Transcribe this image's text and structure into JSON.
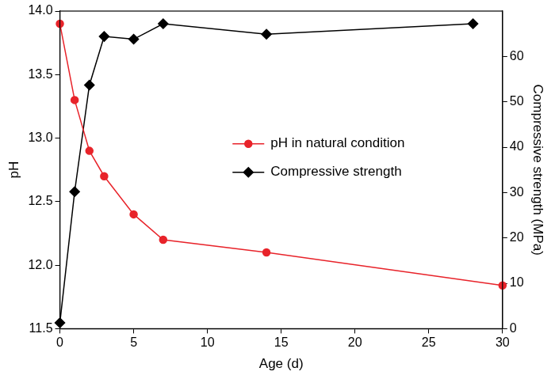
{
  "chart_data": {
    "type": "line",
    "x_label": "Age (d)",
    "y_label": "pH",
    "y2_label": "Compressive strength (MPa)",
    "xlim": [
      0,
      30
    ],
    "xticks": [
      0,
      5,
      10,
      15,
      20,
      25,
      30
    ],
    "ylim": [
      11.5,
      14
    ],
    "yticks": [
      11.5,
      {
        "value": 12,
        "label": "12.0"
      },
      12.5,
      {
        "value": 13,
        "label": "13.0"
      },
      13.5,
      {
        "value": 14,
        "label": "14.0"
      }
    ],
    "y2lim": [
      0,
      70
    ],
    "y2ticks": [
      0,
      10,
      20,
      30,
      40,
      50,
      60
    ],
    "grid": false,
    "legend": "center",
    "series": [
      {
        "name": "pH in natural condition",
        "color": "#e8232a",
        "marker": "circle",
        "line_style": "solid",
        "x": [
          0,
          1,
          2,
          3,
          5,
          7,
          14,
          30
        ],
        "values": [
          13.9,
          13.3,
          12.9,
          12.7,
          12.4,
          12.2,
          12.1,
          11.84
        ]
      },
      {
        "name": "Compressive strength",
        "color": "#000000",
        "marker": "diamond",
        "line_style": "solid",
        "axis": "y2",
        "x": [
          0,
          1,
          2,
          3,
          5,
          7,
          14,
          28
        ],
        "values": [
          1.3,
          30.2,
          53.7,
          64.4,
          63.8,
          67.2,
          64.9,
          67.2
        ]
      }
    ]
  }
}
